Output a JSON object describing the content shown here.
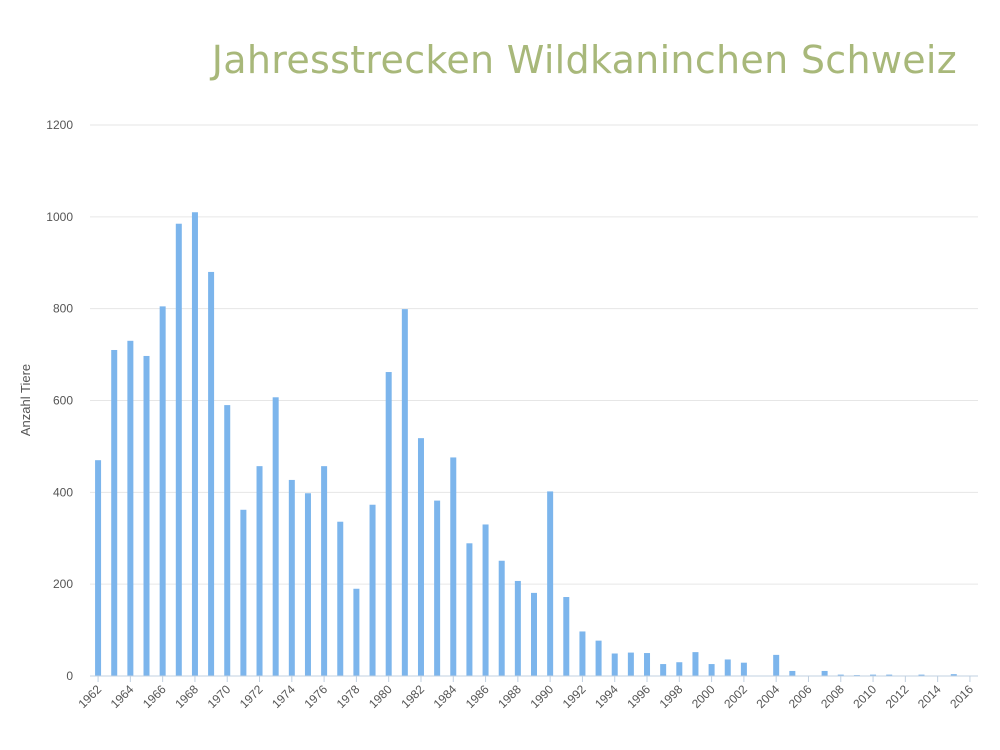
{
  "chart_data": {
    "type": "bar",
    "title": "Jahresstrecken Wildkaninchen Schweiz",
    "ylabel": "Anzahl Tiere",
    "xlabel": "",
    "ylim": [
      0,
      1200
    ],
    "yticks": [
      "0",
      "200",
      "400",
      "600",
      "800",
      "1000",
      "1200"
    ],
    "xticks": [
      "1962",
      "1964",
      "1966",
      "1968",
      "1970",
      "1972",
      "1974",
      "1976",
      "1978",
      "1980",
      "1982",
      "1984",
      "1986",
      "1988",
      "1990",
      "1992",
      "1994",
      "1996",
      "1998",
      "2000",
      "2002",
      "2004",
      "2006",
      "2008",
      "2010",
      "2012",
      "2014",
      "2016"
    ],
    "grid": true,
    "bar_color": "#7cb5ec",
    "categories": [
      "1962",
      "1963",
      "1964",
      "1965",
      "1966",
      "1967",
      "1968",
      "1969",
      "1970",
      "1971",
      "1972",
      "1973",
      "1974",
      "1975",
      "1976",
      "1977",
      "1978",
      "1979",
      "1980",
      "1981",
      "1982",
      "1983",
      "1984",
      "1985",
      "1986",
      "1987",
      "1988",
      "1989",
      "1990",
      "1991",
      "1992",
      "1993",
      "1994",
      "1995",
      "1996",
      "1997",
      "1998",
      "1999",
      "2000",
      "2001",
      "2002",
      "2003",
      "2004",
      "2005",
      "2006",
      "2007",
      "2008",
      "2009",
      "2010",
      "2011",
      "2012",
      "2013",
      "2014",
      "2015",
      "2016"
    ],
    "values": [
      470,
      710,
      730,
      697,
      805,
      985,
      1010,
      880,
      590,
      362,
      457,
      607,
      427,
      398,
      457,
      336,
      190,
      373,
      662,
      799,
      518,
      382,
      476,
      289,
      330,
      251,
      207,
      181,
      402,
      172,
      97,
      77,
      49,
      51,
      50,
      26,
      30,
      52,
      26,
      36,
      29,
      0,
      46,
      11,
      0,
      11,
      3,
      2,
      3,
      3,
      0,
      3,
      0,
      4,
      0
    ]
  }
}
